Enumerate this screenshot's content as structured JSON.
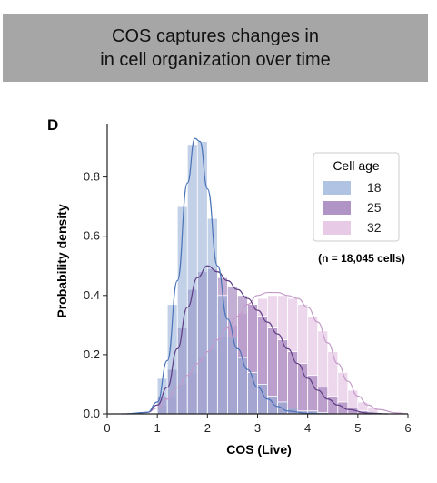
{
  "header": {
    "line1": "COS captures changes in",
    "line2": "in cell organization over time"
  },
  "panel_label": "D",
  "chart_data": {
    "type": "histogram",
    "title": "",
    "xlabel": "COS (Live)",
    "ylabel": "Probability density",
    "xlim": [
      0,
      6
    ],
    "ylim": [
      0,
      0.98
    ],
    "xticks": [
      0,
      1,
      2,
      3,
      4,
      5,
      6
    ],
    "yticks": [
      0.0,
      0.2,
      0.4,
      0.6,
      0.8
    ],
    "ytick_labels": [
      "0.0",
      "0.2",
      "0.4",
      "0.6",
      "0.8"
    ],
    "bin_start": 1.0,
    "bin_width": 0.2,
    "annotation": "(n = 18,045 cells)",
    "legend": {
      "title": "Cell age",
      "placement": "upper-right"
    },
    "grid": false,
    "series": [
      {
        "name": "18",
        "color": "#8fa9d6",
        "line_color": "#4a74b8",
        "density": [
          0.12,
          0.37,
          0.7,
          0.91,
          0.92,
          0.66,
          0.4,
          0.26,
          0.19,
          0.14,
          0.1,
          0.06,
          0.04,
          0.02,
          0.01,
          0.01,
          0.005,
          0.0,
          0.0,
          0.0,
          0.0,
          0.0
        ],
        "kde": [
          [
            0.3,
            0
          ],
          [
            0.8,
            0.005
          ],
          [
            1.0,
            0.04
          ],
          [
            1.2,
            0.18
          ],
          [
            1.4,
            0.45
          ],
          [
            1.6,
            0.78
          ],
          [
            1.75,
            0.93
          ],
          [
            1.85,
            0.92
          ],
          [
            2.0,
            0.76
          ],
          [
            2.2,
            0.5
          ],
          [
            2.4,
            0.32
          ],
          [
            2.6,
            0.22
          ],
          [
            2.8,
            0.15
          ],
          [
            3.0,
            0.09
          ],
          [
            3.2,
            0.05
          ],
          [
            3.4,
            0.025
          ],
          [
            3.6,
            0.01
          ],
          [
            4.0,
            0.002
          ],
          [
            4.4,
            0
          ]
        ]
      },
      {
        "name": "25",
        "color": "#9c79b8",
        "line_color": "#5e3d85",
        "density": [
          0.06,
          0.15,
          0.29,
          0.42,
          0.48,
          0.49,
          0.46,
          0.43,
          0.4,
          0.37,
          0.33,
          0.29,
          0.25,
          0.21,
          0.17,
          0.13,
          0.09,
          0.06,
          0.04,
          0.02,
          0.01,
          0.005
        ],
        "kde": [
          [
            0.4,
            0
          ],
          [
            0.8,
            0.005
          ],
          [
            1.0,
            0.03
          ],
          [
            1.2,
            0.09
          ],
          [
            1.4,
            0.22
          ],
          [
            1.6,
            0.36
          ],
          [
            1.8,
            0.46
          ],
          [
            2.0,
            0.5
          ],
          [
            2.2,
            0.48
          ],
          [
            2.4,
            0.45
          ],
          [
            2.6,
            0.42
          ],
          [
            2.8,
            0.39
          ],
          [
            3.0,
            0.35
          ],
          [
            3.2,
            0.31
          ],
          [
            3.4,
            0.27
          ],
          [
            3.6,
            0.22
          ],
          [
            3.8,
            0.17
          ],
          [
            4.0,
            0.12
          ],
          [
            4.2,
            0.08
          ],
          [
            4.4,
            0.05
          ],
          [
            4.6,
            0.03
          ],
          [
            4.8,
            0.015
          ],
          [
            5.2,
            0.003
          ],
          [
            5.6,
            0
          ]
        ]
      },
      {
        "name": "32",
        "color": "#e0bde0",
        "line_color": "#c59acb",
        "density": [
          0.03,
          0.06,
          0.1,
          0.14,
          0.19,
          0.22,
          0.26,
          0.3,
          0.34,
          0.37,
          0.39,
          0.4,
          0.4,
          0.39,
          0.37,
          0.33,
          0.28,
          0.21,
          0.14,
          0.08,
          0.04,
          0.02
        ],
        "kde": [
          [
            0.5,
            0
          ],
          [
            0.8,
            0.005
          ],
          [
            1.0,
            0.02
          ],
          [
            1.2,
            0.05
          ],
          [
            1.4,
            0.09
          ],
          [
            1.6,
            0.13
          ],
          [
            1.8,
            0.17
          ],
          [
            2.0,
            0.21
          ],
          [
            2.2,
            0.25
          ],
          [
            2.4,
            0.29
          ],
          [
            2.6,
            0.33
          ],
          [
            2.8,
            0.37
          ],
          [
            3.0,
            0.4
          ],
          [
            3.2,
            0.41
          ],
          [
            3.4,
            0.41
          ],
          [
            3.6,
            0.4
          ],
          [
            3.8,
            0.39
          ],
          [
            4.0,
            0.36
          ],
          [
            4.2,
            0.31
          ],
          [
            4.4,
            0.24
          ],
          [
            4.6,
            0.17
          ],
          [
            4.8,
            0.11
          ],
          [
            5.0,
            0.06
          ],
          [
            5.2,
            0.03
          ],
          [
            5.4,
            0.015
          ],
          [
            5.8,
            0.003
          ],
          [
            6.0,
            0
          ]
        ]
      }
    ]
  }
}
